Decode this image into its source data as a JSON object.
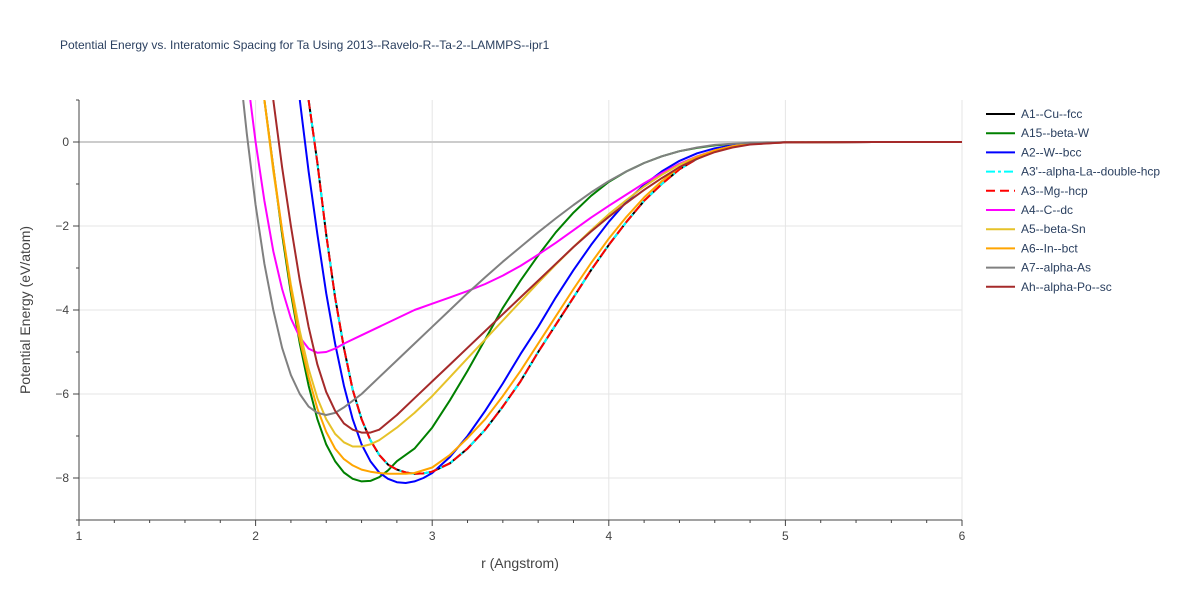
{
  "chart_data": {
    "type": "line",
    "title": "Potential Energy vs. Interatomic Spacing for Ta Using 2013--Ravelo-R--Ta-2--LAMMPS--ipr1",
    "xlabel": "r (Angstrom)",
    "ylabel": "Potential Energy (eV/atom)",
    "xlim": [
      1,
      6
    ],
    "ylim": [
      -9,
      1
    ],
    "xticks": [
      1,
      2,
      3,
      4,
      5,
      6
    ],
    "yticks": [
      -8,
      -6,
      -4,
      -2,
      0
    ],
    "grid": true,
    "legend_position": "right",
    "series": [
      {
        "name": "A1--Cu--fcc",
        "color": "#000000",
        "dash": "solid",
        "x": [
          2.3,
          2.35,
          2.4,
          2.45,
          2.5,
          2.55,
          2.6,
          2.65,
          2.7,
          2.75,
          2.8,
          2.85,
          2.9,
          2.95,
          3.0,
          3.1,
          3.2,
          3.3,
          3.4,
          3.5,
          3.6,
          3.7,
          3.8,
          3.9,
          4.0,
          4.1,
          4.2,
          4.3,
          4.4,
          4.5,
          4.6,
          4.7,
          4.8,
          4.9,
          5.0,
          5.2,
          5.5,
          6.0
        ],
        "y": [
          1.0,
          -0.5,
          -2.2,
          -3.7,
          -4.9,
          -5.9,
          -6.6,
          -7.1,
          -7.45,
          -7.68,
          -7.8,
          -7.87,
          -7.9,
          -7.89,
          -7.85,
          -7.65,
          -7.3,
          -6.85,
          -6.3,
          -5.7,
          -5.0,
          -4.35,
          -3.7,
          -3.05,
          -2.45,
          -1.9,
          -1.4,
          -1.0,
          -0.65,
          -0.4,
          -0.22,
          -0.11,
          -0.05,
          -0.02,
          -0.01,
          0,
          0,
          0
        ]
      },
      {
        "name": "A15--beta-W",
        "color": "#008000",
        "dash": "solid",
        "x": [
          2.05,
          2.1,
          2.15,
          2.2,
          2.25,
          2.3,
          2.35,
          2.4,
          2.45,
          2.5,
          2.55,
          2.6,
          2.65,
          2.7,
          2.75,
          2.8,
          2.9,
          3.0,
          3.1,
          3.2,
          3.3,
          3.4,
          3.5,
          3.6,
          3.7,
          3.8,
          3.9,
          4.0,
          4.1,
          4.2,
          4.3,
          4.4,
          4.5,
          4.6,
          4.7,
          4.8,
          5.0,
          5.5,
          6.0
        ],
        "y": [
          1.0,
          -0.6,
          -2.2,
          -3.6,
          -4.8,
          -5.8,
          -6.6,
          -7.2,
          -7.6,
          -7.87,
          -8.02,
          -8.08,
          -8.07,
          -7.98,
          -7.82,
          -7.6,
          -7.3,
          -6.8,
          -6.15,
          -5.45,
          -4.7,
          -3.95,
          -3.3,
          -2.7,
          -2.15,
          -1.68,
          -1.28,
          -0.95,
          -0.7,
          -0.5,
          -0.34,
          -0.22,
          -0.14,
          -0.08,
          -0.05,
          -0.03,
          -0.01,
          0,
          0
        ]
      },
      {
        "name": "A2--W--bcc",
        "color": "#0000ff",
        "dash": "solid",
        "x": [
          2.25,
          2.3,
          2.35,
          2.4,
          2.45,
          2.5,
          2.55,
          2.6,
          2.65,
          2.7,
          2.75,
          2.8,
          2.85,
          2.9,
          2.95,
          3.0,
          3.1,
          3.2,
          3.3,
          3.4,
          3.5,
          3.6,
          3.7,
          3.8,
          3.9,
          4.0,
          4.1,
          4.2,
          4.3,
          4.4,
          4.5,
          4.6,
          4.7,
          4.8,
          5.0,
          5.5,
          6.0
        ],
        "y": [
          1.0,
          -0.7,
          -2.2,
          -3.6,
          -4.8,
          -5.8,
          -6.6,
          -7.2,
          -7.6,
          -7.87,
          -8.02,
          -8.1,
          -8.12,
          -8.08,
          -8.0,
          -7.88,
          -7.5,
          -7.0,
          -6.4,
          -5.75,
          -5.05,
          -4.4,
          -3.7,
          -3.05,
          -2.45,
          -1.9,
          -1.42,
          -1.02,
          -0.7,
          -0.45,
          -0.27,
          -0.15,
          -0.08,
          -0.04,
          -0.01,
          0,
          0
        ]
      },
      {
        "name": "A3'--alpha-La--double-hcp",
        "color": "#00ffff",
        "dash": "dashdot",
        "x": [
          2.3,
          2.35,
          2.4,
          2.45,
          2.5,
          2.55,
          2.6,
          2.65,
          2.7,
          2.75,
          2.8,
          2.85,
          2.9,
          2.95,
          3.0,
          3.1,
          3.2,
          3.3,
          3.4,
          3.5,
          3.6,
          3.7,
          3.8,
          3.9,
          4.0,
          4.1,
          4.2,
          4.3,
          4.4,
          4.5,
          4.6,
          4.7,
          4.8,
          4.9,
          5.0,
          5.2,
          5.5,
          6.0
        ],
        "y": [
          1.0,
          -0.5,
          -2.2,
          -3.7,
          -4.9,
          -5.9,
          -6.6,
          -7.1,
          -7.45,
          -7.68,
          -7.8,
          -7.87,
          -7.9,
          -7.89,
          -7.85,
          -7.65,
          -7.3,
          -6.85,
          -6.3,
          -5.7,
          -5.0,
          -4.35,
          -3.7,
          -3.05,
          -2.45,
          -1.9,
          -1.4,
          -1.0,
          -0.65,
          -0.4,
          -0.22,
          -0.11,
          -0.05,
          -0.02,
          -0.01,
          0,
          0,
          0
        ]
      },
      {
        "name": "A3--Mg--hcp",
        "color": "#ff0000",
        "dash": "dash",
        "x": [
          2.3,
          2.35,
          2.4,
          2.45,
          2.5,
          2.55,
          2.6,
          2.65,
          2.7,
          2.75,
          2.8,
          2.85,
          2.9,
          2.95,
          3.0,
          3.1,
          3.2,
          3.3,
          3.4,
          3.5,
          3.6,
          3.7,
          3.8,
          3.9,
          4.0,
          4.1,
          4.2,
          4.3,
          4.4,
          4.5,
          4.6,
          4.7,
          4.8,
          4.9,
          5.0,
          5.2,
          5.5,
          6.0
        ],
        "y": [
          1.0,
          -0.5,
          -2.2,
          -3.7,
          -4.9,
          -5.9,
          -6.6,
          -7.1,
          -7.45,
          -7.68,
          -7.8,
          -7.87,
          -7.9,
          -7.89,
          -7.85,
          -7.65,
          -7.3,
          -6.85,
          -6.3,
          -5.7,
          -5.0,
          -4.35,
          -3.7,
          -3.05,
          -2.45,
          -1.9,
          -1.4,
          -1.0,
          -0.65,
          -0.4,
          -0.22,
          -0.11,
          -0.05,
          -0.02,
          -0.01,
          0,
          0,
          0
        ]
      },
      {
        "name": "A4--C--dc",
        "color": "#ff00ff",
        "dash": "solid",
        "x": [
          1.97,
          2.0,
          2.05,
          2.1,
          2.15,
          2.2,
          2.25,
          2.3,
          2.35,
          2.4,
          2.45,
          2.5,
          2.6,
          2.7,
          2.8,
          2.9,
          3.0,
          3.1,
          3.2,
          3.3,
          3.4,
          3.5,
          3.6,
          3.7,
          3.8,
          3.9,
          4.0,
          4.1,
          4.2,
          4.3,
          4.4,
          4.5,
          4.6,
          4.7,
          4.8,
          5.0,
          5.5,
          6.0
        ],
        "y": [
          1.0,
          0.0,
          -1.4,
          -2.6,
          -3.5,
          -4.2,
          -4.65,
          -4.92,
          -5.02,
          -5.0,
          -4.92,
          -4.8,
          -4.6,
          -4.4,
          -4.2,
          -4.0,
          -3.85,
          -3.7,
          -3.55,
          -3.38,
          -3.18,
          -2.95,
          -2.68,
          -2.4,
          -2.1,
          -1.8,
          -1.52,
          -1.25,
          -0.98,
          -0.74,
          -0.52,
          -0.34,
          -0.2,
          -0.1,
          -0.05,
          -0.01,
          0,
          0
        ]
      },
      {
        "name": "A5--beta-Sn",
        "color": "#e6c229",
        "dash": "solid",
        "x": [
          2.05,
          2.1,
          2.15,
          2.2,
          2.25,
          2.3,
          2.35,
          2.4,
          2.45,
          2.5,
          2.55,
          2.6,
          2.65,
          2.7,
          2.8,
          2.9,
          3.0,
          3.1,
          3.2,
          3.3,
          3.4,
          3.5,
          3.6,
          3.7,
          3.8,
          3.9,
          4.0,
          4.1,
          4.2,
          4.3,
          4.4,
          4.5,
          4.6,
          4.7,
          4.8,
          5.0,
          5.5,
          6.0
        ],
        "y": [
          1.0,
          -0.7,
          -2.1,
          -3.4,
          -4.5,
          -5.4,
          -6.1,
          -6.6,
          -6.95,
          -7.15,
          -7.25,
          -7.25,
          -7.2,
          -7.1,
          -6.8,
          -6.45,
          -6.05,
          -5.6,
          -5.15,
          -4.7,
          -4.25,
          -3.8,
          -3.35,
          -2.92,
          -2.5,
          -2.1,
          -1.72,
          -1.38,
          -1.06,
          -0.78,
          -0.54,
          -0.35,
          -0.2,
          -0.1,
          -0.05,
          -0.01,
          0,
          0
        ]
      },
      {
        "name": "A6--In--bct",
        "color": "#ffa500",
        "dash": "solid",
        "x": [
          2.05,
          2.1,
          2.15,
          2.2,
          2.25,
          2.3,
          2.35,
          2.4,
          2.45,
          2.5,
          2.55,
          2.6,
          2.65,
          2.7,
          2.75,
          2.8,
          2.85,
          2.9,
          3.0,
          3.1,
          3.2,
          3.3,
          3.4,
          3.5,
          3.6,
          3.7,
          3.8,
          3.9,
          4.0,
          4.1,
          4.2,
          4.3,
          4.4,
          4.5,
          4.6,
          4.7,
          4.8,
          5.0,
          5.5,
          6.0
        ],
        "y": [
          1.0,
          -0.6,
          -2.1,
          -3.5,
          -4.7,
          -5.6,
          -6.35,
          -6.9,
          -7.3,
          -7.55,
          -7.7,
          -7.8,
          -7.85,
          -7.88,
          -7.9,
          -7.9,
          -7.9,
          -7.88,
          -7.75,
          -7.45,
          -7.05,
          -6.6,
          -6.05,
          -5.45,
          -4.8,
          -4.15,
          -3.5,
          -2.88,
          -2.3,
          -1.78,
          -1.32,
          -0.93,
          -0.6,
          -0.36,
          -0.2,
          -0.1,
          -0.05,
          -0.01,
          0,
          0
        ]
      },
      {
        "name": "A7--alpha-As",
        "color": "#808080",
        "dash": "solid",
        "x": [
          1.93,
          1.95,
          2.0,
          2.05,
          2.1,
          2.15,
          2.2,
          2.25,
          2.3,
          2.35,
          2.4,
          2.45,
          2.5,
          2.6,
          2.7,
          2.8,
          2.9,
          3.0,
          3.1,
          3.2,
          3.3,
          3.4,
          3.5,
          3.6,
          3.7,
          3.8,
          3.9,
          4.0,
          4.1,
          4.2,
          4.3,
          4.4,
          4.5,
          4.6,
          4.7,
          4.8,
          5.0,
          5.5,
          6.0
        ],
        "y": [
          1.0,
          0.2,
          -1.5,
          -2.9,
          -4.0,
          -4.9,
          -5.55,
          -6.0,
          -6.3,
          -6.45,
          -6.5,
          -6.45,
          -6.32,
          -6.0,
          -5.6,
          -5.2,
          -4.8,
          -4.4,
          -4.0,
          -3.6,
          -3.22,
          -2.85,
          -2.5,
          -2.15,
          -1.82,
          -1.5,
          -1.2,
          -0.93,
          -0.7,
          -0.5,
          -0.34,
          -0.22,
          -0.13,
          -0.07,
          -0.04,
          -0.02,
          -0.01,
          0,
          0
        ]
      },
      {
        "name": "Ah--alpha-Po--sc",
        "color": "#a52a2a",
        "dash": "solid",
        "x": [
          2.1,
          2.15,
          2.2,
          2.25,
          2.3,
          2.35,
          2.4,
          2.45,
          2.5,
          2.55,
          2.6,
          2.65,
          2.7,
          2.8,
          2.9,
          3.0,
          3.1,
          3.2,
          3.3,
          3.4,
          3.5,
          3.6,
          3.7,
          3.8,
          3.9,
          4.0,
          4.1,
          4.2,
          4.3,
          4.4,
          4.5,
          4.6,
          4.7,
          4.8,
          5.0,
          5.5,
          6.0
        ],
        "y": [
          1.0,
          -0.6,
          -2.0,
          -3.3,
          -4.4,
          -5.3,
          -5.95,
          -6.4,
          -6.7,
          -6.85,
          -6.92,
          -6.92,
          -6.85,
          -6.5,
          -6.1,
          -5.7,
          -5.3,
          -4.9,
          -4.5,
          -4.1,
          -3.7,
          -3.3,
          -2.9,
          -2.5,
          -2.13,
          -1.78,
          -1.45,
          -1.14,
          -0.86,
          -0.6,
          -0.4,
          -0.24,
          -0.13,
          -0.06,
          -0.01,
          0,
          0
        ]
      }
    ]
  }
}
